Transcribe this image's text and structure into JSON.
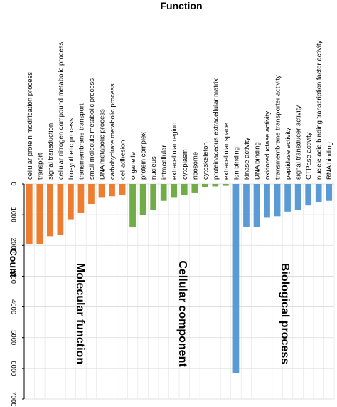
{
  "chart_data": {
    "type": "bar",
    "orientation": "vertical-downward",
    "title": "Function",
    "ylabel": "Count",
    "ylim": [
      0,
      7000
    ],
    "yticks": [
      0,
      1000,
      2000,
      3000,
      4000,
      5000,
      6000,
      7000
    ],
    "grid": true,
    "categories": [
      "cellular protein modification process",
      "transport",
      "signal transduction",
      "cellular nitrogen compound metabolic process",
      "biosynthetic process",
      "transmembrane transport",
      "small molecule metabolic process",
      "DNA metabolic process",
      "carbohydrate metabolic process",
      "cell adhesion",
      "organelle",
      "protein complex",
      "nucleus",
      "intracellular",
      "extracellular region",
      "cytoplasm",
      "ribosome",
      "cytoskeleton",
      "proteinaceous extracellular matrix",
      "extracellular space",
      "ion binding",
      "kinase activity",
      "DNA binding",
      "oxidoreductase activity",
      "transmembrane transporter activity",
      "peptidase activity",
      "signal transducer activity",
      "GTPase activity",
      "nucleic acid binding transcription factor activity",
      "RNA binding"
    ],
    "series": [
      {
        "name": "Molecular function",
        "color": "#ED7D31",
        "values": [
          1950,
          1950,
          1700,
          1650,
          1150,
          950,
          650,
          450,
          400,
          350,
          null,
          null,
          null,
          null,
          null,
          null,
          null,
          null,
          null,
          null,
          null,
          null,
          null,
          null,
          null,
          null,
          null,
          null,
          null,
          null
        ]
      },
      {
        "name": "Cellular component",
        "color": "#70AD47",
        "values": [
          null,
          null,
          null,
          null,
          null,
          null,
          null,
          null,
          null,
          null,
          1400,
          1000,
          850,
          550,
          450,
          350,
          300,
          100,
          80,
          60,
          null,
          null,
          null,
          null,
          null,
          null,
          null,
          null,
          null,
          null
        ]
      },
      {
        "name": "Biological process",
        "color": "#5B9BD5",
        "values": [
          null,
          null,
          null,
          null,
          null,
          null,
          null,
          null,
          null,
          null,
          null,
          null,
          null,
          null,
          null,
          null,
          null,
          null,
          null,
          null,
          6150,
          1400,
          1400,
          1100,
          1050,
          900,
          850,
          700,
          600,
          550
        ]
      }
    ],
    "annotations": [
      "Molecular function",
      "Cellular component",
      "Biological process"
    ]
  }
}
